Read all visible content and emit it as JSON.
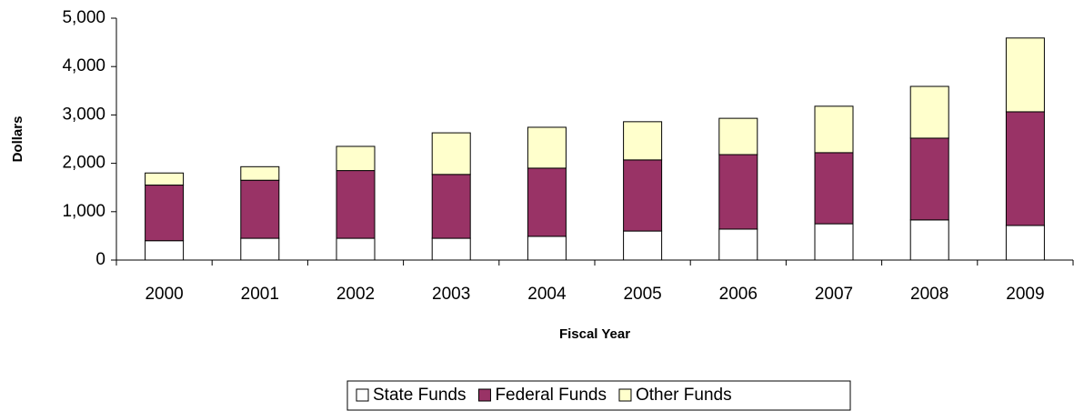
{
  "chart_data": {
    "type": "stacked-bar",
    "y_label": "Dollars",
    "x_label": "Fiscal Year",
    "categories": [
      "2000",
      "2001",
      "2002",
      "2003",
      "2004",
      "2005",
      "2006",
      "2007",
      "2008",
      "2009"
    ],
    "series": [
      {
        "name": "State Funds",
        "color": "#ffffff",
        "values": [
          400,
          450,
          450,
          450,
          490,
          600,
          640,
          750,
          830,
          715
        ]
      },
      {
        "name": "Federal Funds",
        "color": "#993366",
        "values": [
          1150,
          1200,
          1400,
          1320,
          1410,
          1470,
          1540,
          1470,
          1690,
          2350
        ]
      },
      {
        "name": "Other Funds",
        "color": "#ffffcc",
        "values": [
          250,
          280,
          500,
          860,
          845,
          790,
          750,
          960,
          1070,
          1525
        ]
      }
    ],
    "ylim": [
      0,
      5000
    ],
    "yticks": [
      0,
      {
        "value": 1000,
        "label": "1,000"
      },
      {
        "value": 2000,
        "label": "2,000"
      },
      {
        "value": 3000,
        "label": "3,000"
      },
      {
        "value": 4000,
        "label": "4,000"
      },
      {
        "value": 5000,
        "label": "5,000"
      }
    ],
    "grid": false,
    "legend": "bottom"
  }
}
